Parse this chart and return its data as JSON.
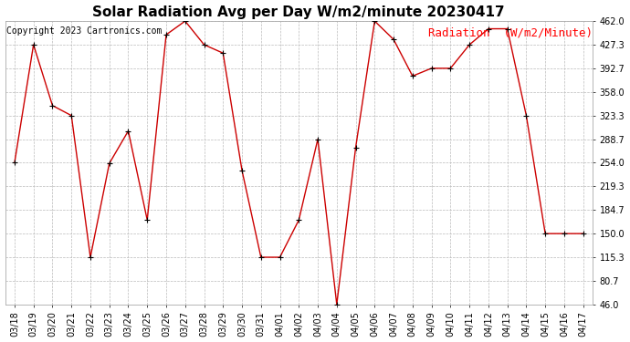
{
  "title": "Solar Radiation Avg per Day W/m2/minute 20230417",
  "copyright": "Copyright 2023 Cartronics.com",
  "legend_label": "Radiation  (W/m2/Minute)",
  "dates": [
    "03/18",
    "03/19",
    "03/20",
    "03/21",
    "03/22",
    "03/23",
    "03/24",
    "03/25",
    "03/26",
    "03/27",
    "03/28",
    "03/29",
    "03/30",
    "03/31",
    "04/01",
    "04/02",
    "04/03",
    "04/04",
    "04/05",
    "04/06",
    "04/07",
    "04/08",
    "04/09",
    "04/10",
    "04/11",
    "04/12",
    "04/13",
    "04/14",
    "04/15",
    "04/16",
    "04/17"
  ],
  "values": [
    254.0,
    427.3,
    338.0,
    323.3,
    115.3,
    253.0,
    300.7,
    170.0,
    442.0,
    462.0,
    427.3,
    415.0,
    242.7,
    115.3,
    115.3,
    170.0,
    288.7,
    46.0,
    276.7,
    462.0,
    435.0,
    381.3,
    392.7,
    392.7,
    427.3,
    450.7,
    450.7,
    323.3,
    150.0,
    150.0,
    150.0
  ],
  "line_color": "#cc0000",
  "marker": "+",
  "marker_size": 5,
  "marker_color": "#000000",
  "ylim": [
    46.0,
    462.0
  ],
  "yticks": [
    46.0,
    80.7,
    115.3,
    150.0,
    184.7,
    219.3,
    254.0,
    288.7,
    323.3,
    358.0,
    392.7,
    427.3,
    462.0
  ],
  "grid_color": "#bbbbbb",
  "background_color": "#ffffff",
  "title_fontsize": 11,
  "copyright_fontsize": 7,
  "legend_fontsize": 9,
  "tick_fontsize": 7
}
